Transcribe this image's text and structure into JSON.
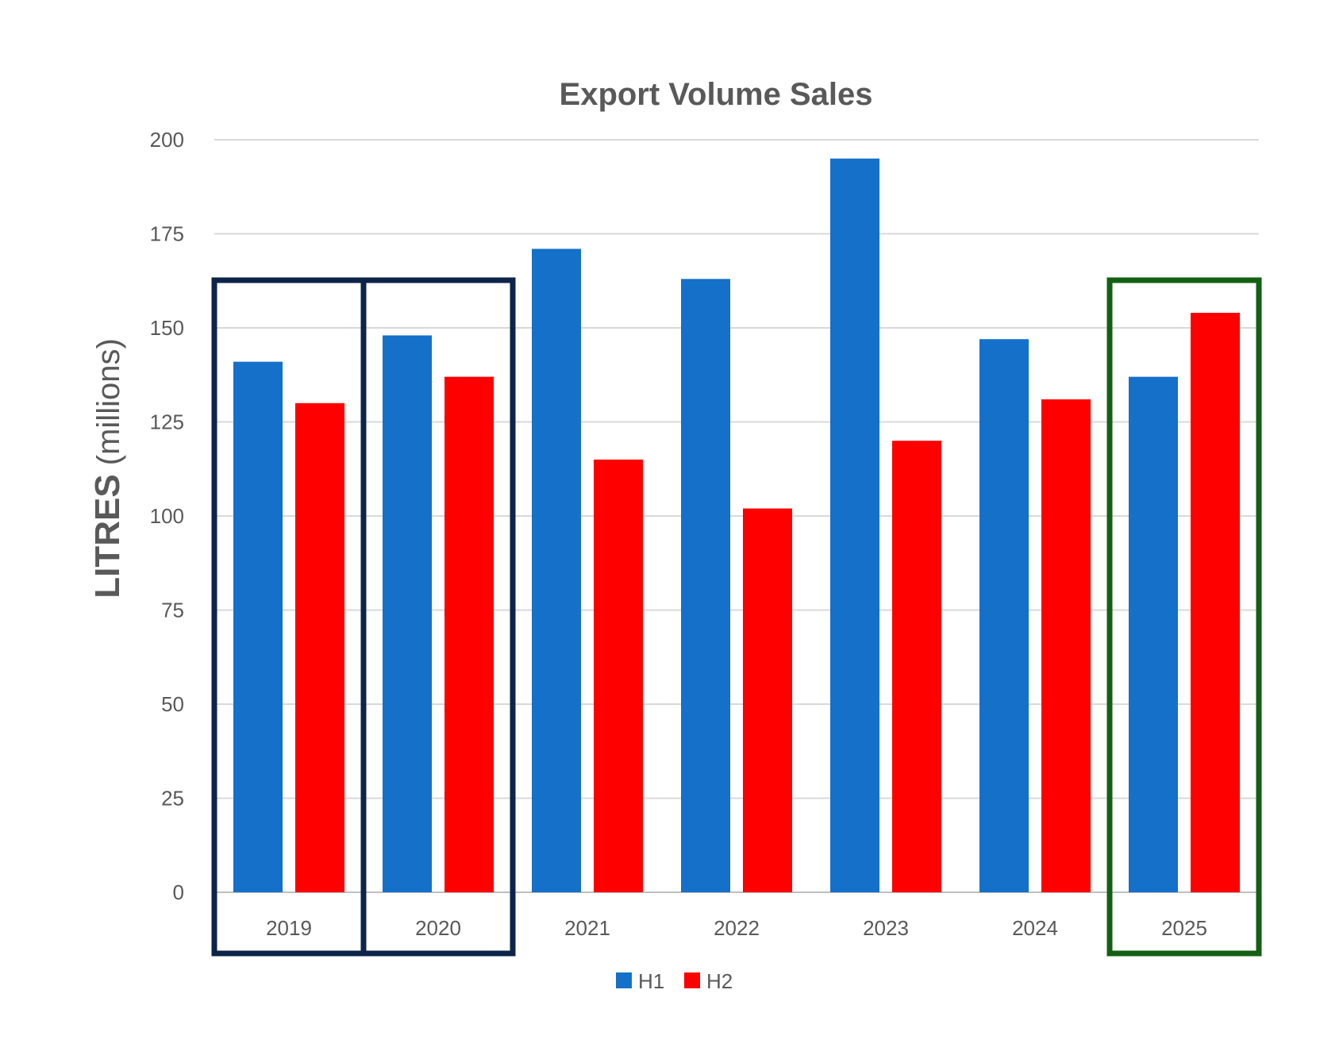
{
  "chart_data": {
    "type": "bar",
    "title": "Export Volume Sales",
    "ylabel_bold": "LITRES",
    "ylabel_rest": " (millions)",
    "xlabel": "",
    "ylim": [
      0,
      200
    ],
    "yticks": [
      0,
      25,
      50,
      75,
      100,
      125,
      150,
      175,
      200
    ],
    "categories": [
      "2019",
      "2020",
      "2021",
      "2022",
      "2023",
      "2024",
      "2025"
    ],
    "series": [
      {
        "name": "H1",
        "color": "#1570c9",
        "values": [
          141,
          148,
          171,
          163,
          195,
          147,
          137
        ]
      },
      {
        "name": "H2",
        "color": "#ff0000",
        "values": [
          130,
          137,
          115,
          102,
          120,
          131,
          154
        ]
      }
    ],
    "grid": true,
    "legend_position": "bottom-center",
    "highlights": [
      {
        "category": "2019",
        "color": "#0d2449"
      },
      {
        "category": "2020",
        "color": "#0d2449"
      },
      {
        "category": "2025",
        "color": "#136013"
      }
    ]
  }
}
